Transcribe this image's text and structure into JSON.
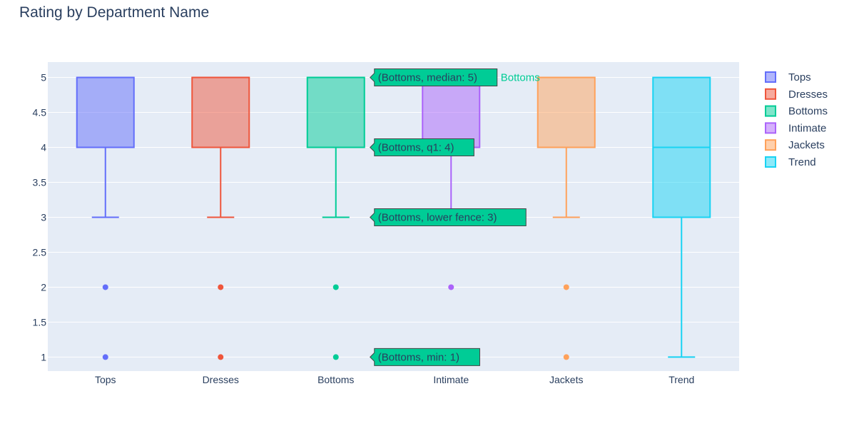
{
  "chart_data": {
    "type": "box",
    "title": "Rating by Department Name",
    "xlabel": "",
    "ylabel": "",
    "ylim": [
      0.8,
      5.22
    ],
    "y_ticks": [
      "1",
      "1.5",
      "2",
      "2.5",
      "3",
      "3.5",
      "4",
      "4.5",
      "5"
    ],
    "y_tick_values": [
      1,
      1.5,
      2,
      2.5,
      3,
      3.5,
      4,
      4.5,
      5
    ],
    "categories": [
      "Tops",
      "Dresses",
      "Bottoms",
      "Intimate",
      "Jackets",
      "Trend"
    ],
    "series": [
      {
        "name": "Tops",
        "color": "#636efa",
        "lowerfence": 3,
        "q1": 4,
        "median": 5,
        "q3": 5,
        "upperfence": 5,
        "outliers": [
          2,
          1
        ]
      },
      {
        "name": "Dresses",
        "color": "#ef553b",
        "lowerfence": 3,
        "q1": 4,
        "median": 5,
        "q3": 5,
        "upperfence": 5,
        "outliers": [
          2,
          1
        ]
      },
      {
        "name": "Bottoms",
        "color": "#00cc96",
        "lowerfence": 3,
        "q1": 4,
        "median": 5,
        "q3": 5,
        "upperfence": 5,
        "outliers": [
          2,
          1
        ]
      },
      {
        "name": "Intimate",
        "color": "#ab63fa",
        "lowerfence": 3,
        "q1": 4,
        "median": 5,
        "q3": 5,
        "upperfence": 5,
        "outliers": [
          2
        ]
      },
      {
        "name": "Jackets",
        "color": "#ffa15a",
        "lowerfence": 3,
        "q1": 4,
        "median": 5,
        "q3": 5,
        "upperfence": 5,
        "outliers": [
          2,
          1
        ]
      },
      {
        "name": "Trend",
        "color": "#19d3f3",
        "lowerfence": 1,
        "q1": 3,
        "median": 4,
        "q3": 5,
        "upperfence": 5,
        "outliers": []
      }
    ],
    "legend_placement": "top-right",
    "grid": true,
    "plot_background": "#e5ecf6",
    "hover": {
      "series": "Bottoms",
      "labels": [
        {
          "text": "(Bottoms, median: 5)",
          "value": 5
        },
        {
          "text": "(Bottoms, q1: 4)",
          "value": 4
        },
        {
          "text": "(Bottoms, lower fence: 3)",
          "value": 3
        },
        {
          "text": "(Bottoms, min: 1)",
          "value": 1
        }
      ],
      "name_label": {
        "text": "Bottoms",
        "value": 5
      }
    }
  }
}
